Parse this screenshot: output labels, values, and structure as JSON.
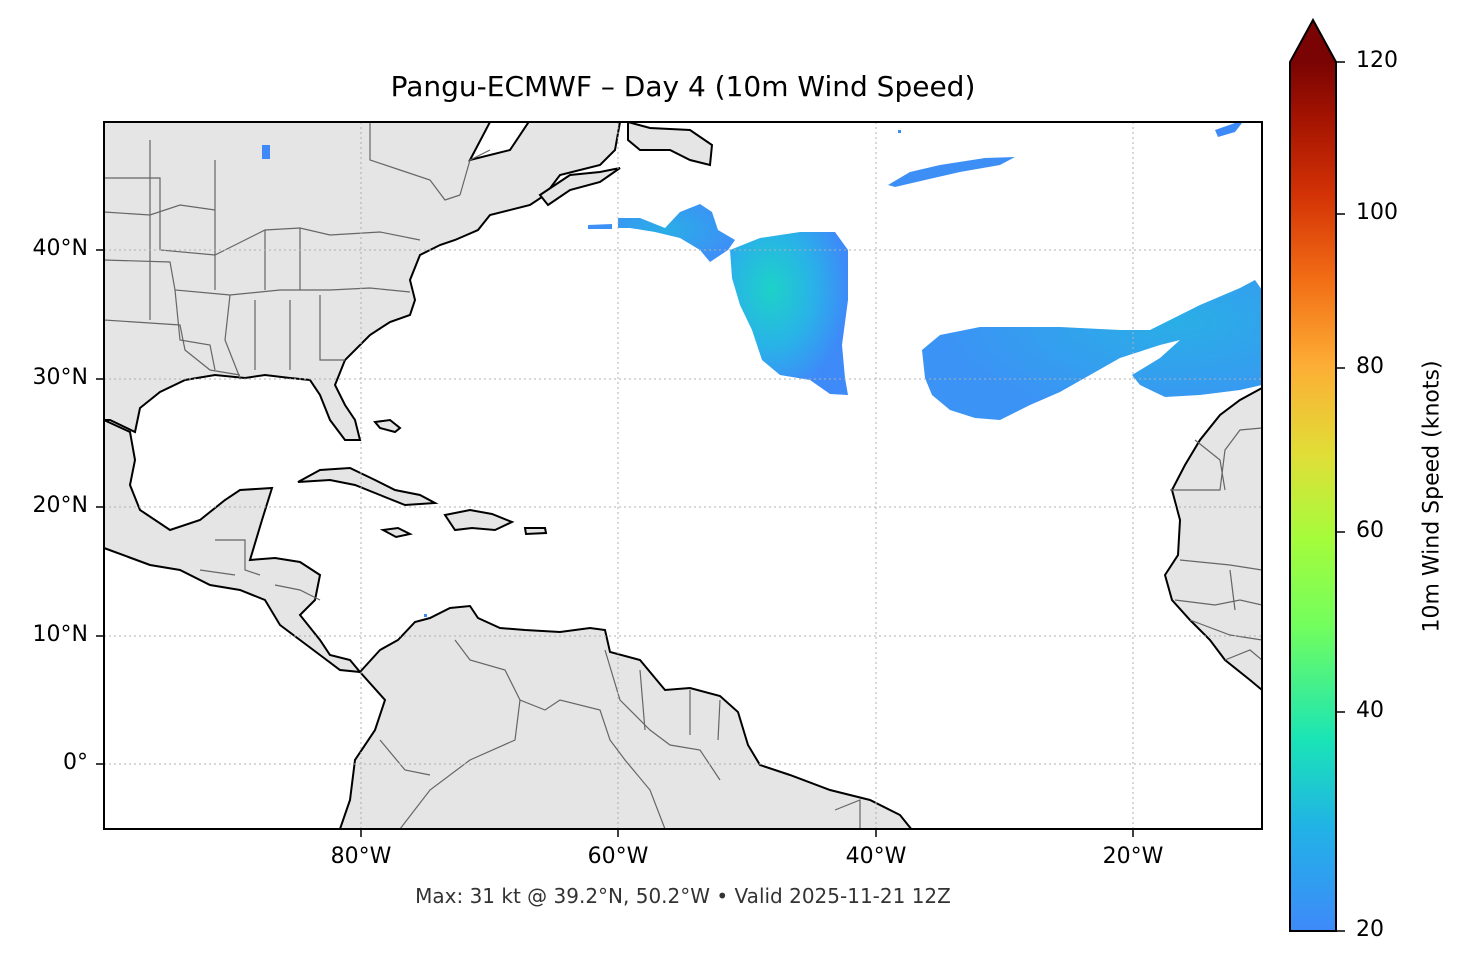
{
  "title": "Pangu-ECMWF – Day 4 (10m Wind Speed)",
  "footnote": "Max: 31 kt @ 39.2°N, 50.2°W • Valid 2025-11-21 12Z",
  "map": {
    "extent": {
      "lon": [
        -100,
        -10
      ],
      "lat": [
        -5,
        50
      ]
    },
    "lat_ticks": [
      "40°N",
      "30°N",
      "20°N",
      "10°N",
      "0°"
    ],
    "lon_ticks": [
      "80°W",
      "60°W",
      "40°W",
      "20°W"
    ],
    "land_color": "#e5e5e5",
    "coast_color": "#000000",
    "border_color": "#666666",
    "grid": true
  },
  "colorbar": {
    "label": "10m Wind Speed (knots)",
    "ticks": [
      "120",
      "100",
      "80",
      "60",
      "40",
      "20"
    ],
    "range": [
      20,
      120
    ],
    "extend": "max",
    "cmap": "turbo"
  },
  "wind_patches": [
    {
      "name": "central-atlantic-max",
      "approx_lat": 39.2,
      "approx_lon": -50.2,
      "max_kt": 31
    },
    {
      "name": "eastern-atlantic-band",
      "approx_lat": 31,
      "approx_lon": -25,
      "max_kt": 28
    },
    {
      "name": "northern-streak",
      "approx_lat": 46,
      "approx_lon": -30,
      "max_kt": 23
    },
    {
      "name": "newfoundland-streak",
      "approx_lat": 41,
      "approx_lon": -57,
      "max_kt": 24
    }
  ]
}
